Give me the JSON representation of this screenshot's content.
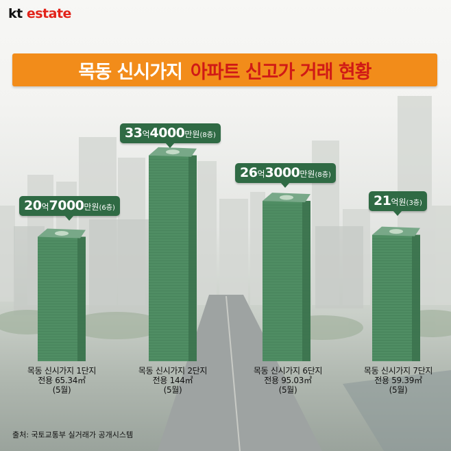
{
  "brand": {
    "kt": "kt",
    "word": "estate"
  },
  "title": {
    "part1": "목동 신시가지",
    "part2": "아파트 신고가 거래 현황"
  },
  "chart_data": {
    "type": "bar",
    "unit": "만원",
    "categories": [
      "목동 신시가지 1단지",
      "목동 신시가지 2단지",
      "목동 신시가지 6단지",
      "목동 신시가지 7단지"
    ],
    "values": [
      207000,
      334000,
      263000,
      210000
    ],
    "bars": [
      {
        "name": "목동 신시가지 1단지",
        "area": "전용 65.34㎡",
        "month": "(5월)",
        "price_eok": "20",
        "price_man": "7000",
        "floor": "(6층)"
      },
      {
        "name": "목동 신시가지 2단지",
        "area": "전용 144㎡",
        "month": "(5월)",
        "price_eok": "33",
        "price_man": "4000",
        "floor": "(8층)"
      },
      {
        "name": "목동 신시가지 6단지",
        "area": "전용 95.03㎡",
        "month": "(5월)",
        "price_eok": "26",
        "price_man": "3000",
        "floor": "(8층)"
      },
      {
        "name": "목동 신시가지 7단지",
        "area": "전용 59.39㎡",
        "month": "(5월)",
        "price_eok": "21",
        "price_man": "",
        "floor": "(3층)"
      }
    ],
    "labels": {
      "eok": "억",
      "man": "만원",
      "won": "원"
    }
  },
  "source": "출처: 국토교통부 실거래가 공개시스템",
  "colors": {
    "banner": "#f28c1a",
    "title_red": "#d01a16",
    "bubble": "#2f6a44",
    "stack": "#4f8d63"
  }
}
